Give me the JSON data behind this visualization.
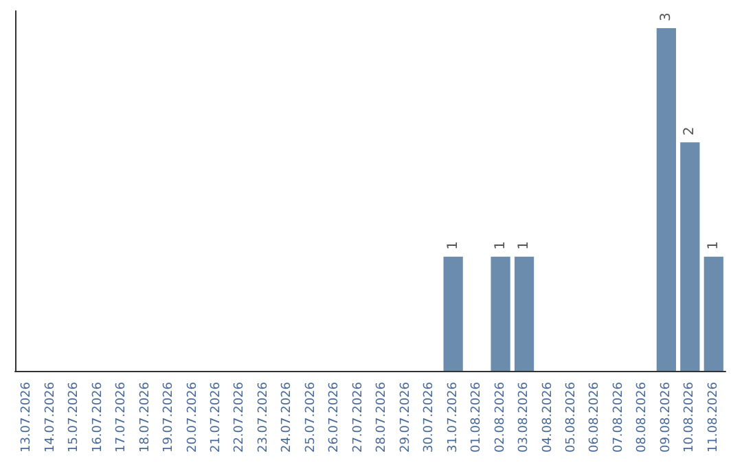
{
  "chart_data": {
    "type": "bar",
    "categories": [
      "13.07.2026",
      "14.07.2026",
      "15.07.2026",
      "16.07.2026",
      "17.07.2026",
      "18.07.2026",
      "19.07.2026",
      "20.07.2026",
      "21.07.2026",
      "22.07.2026",
      "23.07.2026",
      "24.07.2026",
      "25.07.2026",
      "26.07.2026",
      "27.07.2026",
      "28.07.2026",
      "29.07.2026",
      "30.07.2026",
      "31.07.2026",
      "01.08.2026",
      "02.08.2026",
      "03.08.2026",
      "04.08.2026",
      "05.08.2026",
      "06.08.2026",
      "07.08.2026",
      "08.08.2026",
      "09.08.2026",
      "10.08.2026",
      "11.08.2026"
    ],
    "values": [
      null,
      null,
      null,
      null,
      null,
      null,
      null,
      null,
      null,
      null,
      null,
      null,
      null,
      null,
      null,
      null,
      null,
      null,
      1,
      null,
      1,
      1,
      null,
      null,
      null,
      null,
      null,
      3,
      2,
      1
    ],
    "data_labels": true,
    "color": "#6b8cac",
    "grid": false,
    "tick_labels": "x"
  }
}
